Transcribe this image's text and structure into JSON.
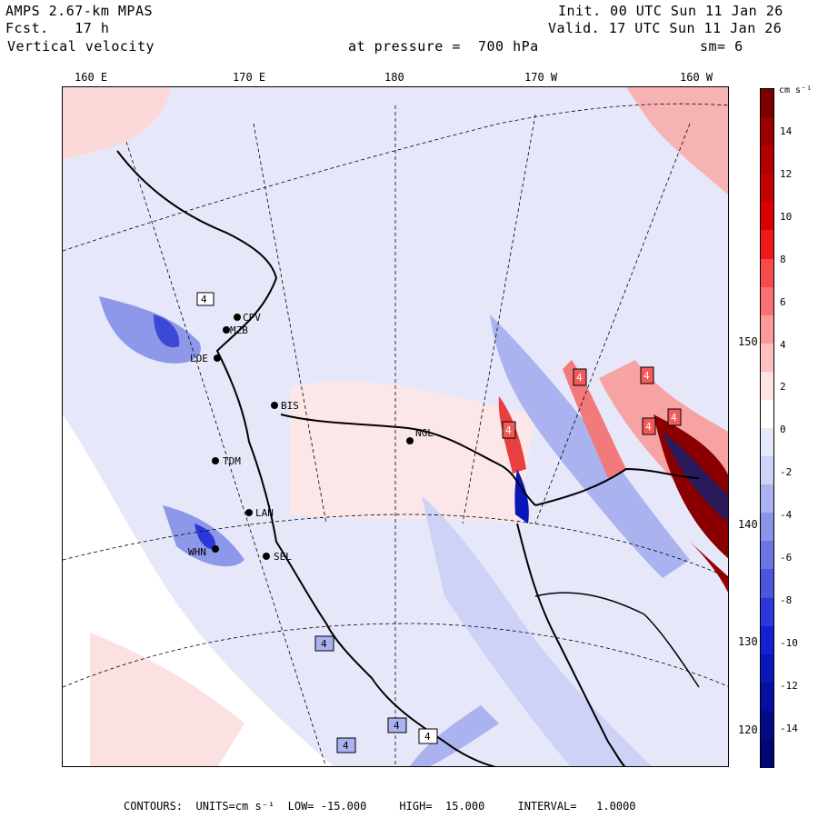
{
  "header": {
    "model": "AMPS 2.67-km MPAS",
    "forecast": "Fcst.   17 h",
    "field": "Vertical velocity",
    "init": "Init. 00 UTC Sun 11 Jan 26",
    "valid": "Valid. 17 UTC Sun 11 Jan 26",
    "level": "at pressure =  700 hPa",
    "smoothing": "sm= 6"
  },
  "longitude_labels": [
    "160 E",
    "170 E",
    "180",
    "170 W",
    "160 W"
  ],
  "latitude_labels": [
    "150 W",
    "140 W",
    "130 W",
    "120 W"
  ],
  "stations": [
    "CPV",
    "MZB",
    "LOE",
    "BIS",
    "NGL",
    "TDM",
    "LAN",
    "WHN",
    "SEL"
  ],
  "contour_label": "4",
  "colorbar": {
    "units": "cm s⁻¹",
    "labels": [
      "14",
      "12",
      "10",
      "8",
      "6",
      "4",
      "2",
      "0",
      "-2",
      "-4",
      "-6",
      "-8",
      "-10",
      "-12",
      "-14"
    ],
    "colors": [
      "#7a0000",
      "#9b0000",
      "#b00000",
      "#c40000",
      "#d80000",
      "#ee1a1a",
      "#f84a4a",
      "#fb7070",
      "#fc9a9a",
      "#fdbfbf",
      "#ffe2e2",
      "#ffffff",
      "#e6e9fb",
      "#cdd2f6",
      "#aab2f0",
      "#8a93ea",
      "#6b74e4",
      "#4b55de",
      "#2b37d8",
      "#1321d0",
      "#0a17b8",
      "#0610a0",
      "#030b88",
      "#010670"
    ]
  },
  "footer": {
    "text": "CONTOURS:  UNITS=cm s⁻¹  LOW= -15.000     HIGH=  15.000     INTERVAL=   1.0000"
  }
}
